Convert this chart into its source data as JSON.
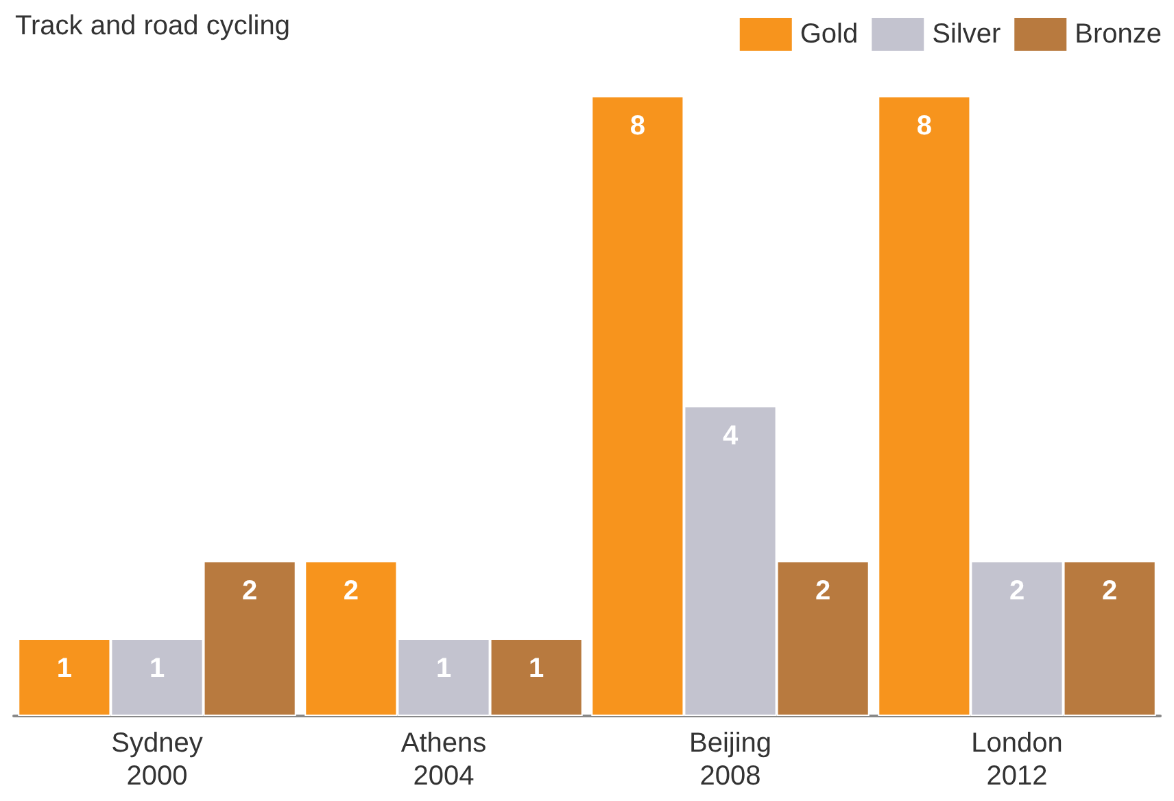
{
  "chart_data": {
    "type": "bar",
    "title": "Track and road cycling",
    "categories": [
      "Sydney\n2000",
      "Athens\n2004",
      "Beijing\n2008",
      "London\n2012"
    ],
    "series": [
      {
        "name": "Gold",
        "color": "#f7941d",
        "values": [
          1,
          2,
          8,
          8
        ]
      },
      {
        "name": "Silver",
        "color": "#c3c3cf",
        "values": [
          1,
          1,
          4,
          2
        ]
      },
      {
        "name": "Bronze",
        "color": "#b87a3f",
        "values": [
          2,
          1,
          2,
          2
        ]
      }
    ],
    "data_labels": true,
    "legend": "top right"
  }
}
